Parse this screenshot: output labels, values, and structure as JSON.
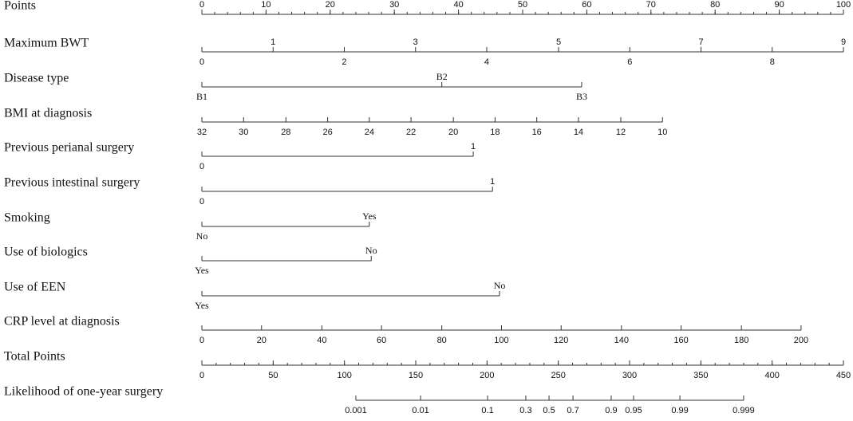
{
  "chart_data": {
    "type": "nomogram",
    "scales": {
      "points": [
        0,
        100
      ],
      "total": [
        0,
        450
      ]
    },
    "rows": [
      {
        "name": "Points",
        "scale": "points",
        "labels_above": true,
        "minor_step": 2,
        "ticks": [
          {
            "label": 0,
            "at": 0
          },
          {
            "label": 10,
            "at": 10
          },
          {
            "label": 20,
            "at": 20
          },
          {
            "label": 30,
            "at": 30
          },
          {
            "label": 40,
            "at": 40
          },
          {
            "label": 50,
            "at": 50
          },
          {
            "label": 60,
            "at": 60
          },
          {
            "label": 70,
            "at": 70
          },
          {
            "label": 80,
            "at": 80
          },
          {
            "label": 90,
            "at": 90
          },
          {
            "label": 100,
            "at": 100
          }
        ]
      },
      {
        "name": "Maximum BWT",
        "scale": "points",
        "alternate": true,
        "ticks": [
          {
            "label": 0,
            "at": 0
          },
          {
            "label": 1,
            "at": 11.1
          },
          {
            "label": 2,
            "at": 22.2
          },
          {
            "label": 3,
            "at": 33.3
          },
          {
            "label": 4,
            "at": 44.4
          },
          {
            "label": 5,
            "at": 55.6
          },
          {
            "label": 6,
            "at": 66.7
          },
          {
            "label": 7,
            "at": 77.8
          },
          {
            "label": 8,
            "at": 88.9
          },
          {
            "label": 9,
            "at": 100
          }
        ]
      },
      {
        "name": "Disease type",
        "scale": "points",
        "alternate": true,
        "ticks": [
          {
            "label": "B1",
            "at": 0
          },
          {
            "label": "B2",
            "at": 37.4
          },
          {
            "label": "B3",
            "at": 59.2
          }
        ]
      },
      {
        "name": "BMI at diagnosis",
        "scale": "points",
        "ticks": [
          {
            "label": 32,
            "at": 0
          },
          {
            "label": 30,
            "at": 6.5
          },
          {
            "label": 28,
            "at": 13.1
          },
          {
            "label": 26,
            "at": 19.6
          },
          {
            "label": 24,
            "at": 26.1
          },
          {
            "label": 22,
            "at": 32.6
          },
          {
            "label": 20,
            "at": 39.2
          },
          {
            "label": 18,
            "at": 45.7
          },
          {
            "label": 16,
            "at": 52.2
          },
          {
            "label": 14,
            "at": 58.7
          },
          {
            "label": 12,
            "at": 65.3
          },
          {
            "label": 10,
            "at": 71.8
          }
        ]
      },
      {
        "name": "Previous perianal surgery",
        "scale": "points",
        "alternate": true,
        "ticks": [
          {
            "label": 0,
            "at": 0
          },
          {
            "label": 1,
            "at": 42.3
          }
        ]
      },
      {
        "name": "Previous intestinal surgery",
        "scale": "points",
        "alternate": true,
        "ticks": [
          {
            "label": 0,
            "at": 0
          },
          {
            "label": 1,
            "at": 45.3
          }
        ]
      },
      {
        "name": "Smoking",
        "scale": "points",
        "alternate": true,
        "ticks": [
          {
            "label": "No",
            "at": 0
          },
          {
            "label": "Yes",
            "at": 26.1
          }
        ]
      },
      {
        "name": "Use of biologics",
        "scale": "points",
        "alternate": true,
        "ticks": [
          {
            "label": "Yes",
            "at": 0
          },
          {
            "label": "No",
            "at": 26.4
          }
        ]
      },
      {
        "name": "Use of EEN",
        "scale": "points",
        "alternate": true,
        "ticks": [
          {
            "label": "Yes",
            "at": 0
          },
          {
            "label": "No",
            "at": 46.4
          }
        ]
      },
      {
        "name": "CRP level at diagnosis",
        "scale": "points",
        "ticks": [
          {
            "label": 0,
            "at": 0
          },
          {
            "label": 20,
            "at": 9.3
          },
          {
            "label": 40,
            "at": 18.7
          },
          {
            "label": 60,
            "at": 28.0
          },
          {
            "label": 80,
            "at": 37.4
          },
          {
            "label": 100,
            "at": 46.7
          },
          {
            "label": 120,
            "at": 56.0
          },
          {
            "label": 140,
            "at": 65.4
          },
          {
            "label": 160,
            "at": 74.7
          },
          {
            "label": 180,
            "at": 84.1
          },
          {
            "label": 200,
            "at": 93.4
          }
        ]
      },
      {
        "name": "Total Points",
        "scale": "total",
        "minor_step": 10,
        "ticks": [
          {
            "label": 0,
            "at": 0
          },
          {
            "label": 50,
            "at": 50
          },
          {
            "label": 100,
            "at": 100
          },
          {
            "label": 150,
            "at": 150
          },
          {
            "label": 200,
            "at": 200
          },
          {
            "label": 250,
            "at": 250
          },
          {
            "label": 300,
            "at": 300
          },
          {
            "label": 350,
            "at": 350
          },
          {
            "label": 400,
            "at": 400
          },
          {
            "label": 450,
            "at": 450
          }
        ]
      },
      {
        "name": "Likelihood of one-year surgery",
        "scale": "total",
        "ticks": [
          {
            "label": 0.001,
            "at": 108.0
          },
          {
            "label": 0.01,
            "at": 153.4
          },
          {
            "label": 0.1,
            "at": 200.4
          },
          {
            "label": 0.3,
            "at": 227.2
          },
          {
            "label": 0.5,
            "at": 243.5
          },
          {
            "label": 0.7,
            "at": 260.3
          },
          {
            "label": 0.9,
            "at": 287.1
          },
          {
            "label": 0.95,
            "at": 302.8
          },
          {
            "label": 0.99,
            "at": 335.3
          },
          {
            "label": 0.999,
            "at": 380.0
          }
        ]
      }
    ]
  }
}
